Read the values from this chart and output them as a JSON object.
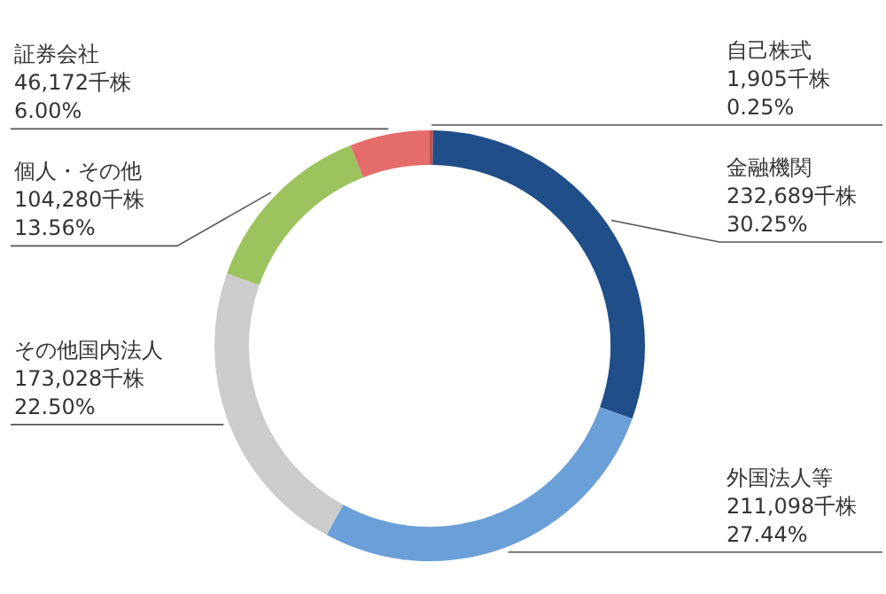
{
  "chart_data": {
    "type": "donut",
    "categories": [
      "自己株式",
      "金融機関",
      "外国法人等",
      "その他国内法人",
      "個人・その他",
      "証券会社"
    ],
    "values": [
      1905,
      232689,
      211098,
      173028,
      104280,
      46172
    ],
    "value_labels": [
      "1,905千株\n0.25%",
      "232,689千株\n30.25%",
      "211,098千株\n27.44%",
      "173,028千株\n22.50%",
      "104,280千株\n13.56%",
      "46,172千株\n6.00%"
    ],
    "colors": [
      "#c0504d",
      "#1f4e89",
      "#6a9fd8",
      "#cccccc",
      "#9dc35f",
      "#e46c6a"
    ],
    "legend": false
  }
}
